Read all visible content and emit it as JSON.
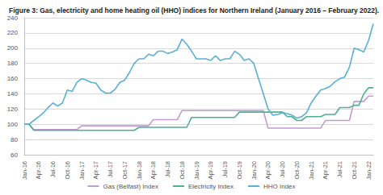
{
  "chart_data": {
    "type": "line",
    "title": "Figure 3: Gas, electricity and home heating oil (HHO) indices for Northern Ireland (January 2016 – February 2022).",
    "categories": [
      "Jan-16",
      null,
      null,
      "Apr-16",
      null,
      null,
      "Jul-16",
      null,
      null,
      "Oct-16",
      null,
      null,
      "Jan-17",
      null,
      null,
      "Apr-17",
      null,
      null,
      "Jul-17",
      null,
      null,
      "Oct-17",
      null,
      null,
      "Jan-18",
      null,
      null,
      "Apr-18",
      null,
      null,
      "Jul-18",
      null,
      null,
      "Oct-18",
      null,
      null,
      "Jan-19",
      null,
      null,
      "Apr-19",
      null,
      null,
      "Jul-19",
      null,
      null,
      "Oct-19",
      null,
      null,
      "Jan-20",
      null,
      null,
      "Apr-20",
      null,
      null,
      "Jul-20",
      null,
      null,
      "Oct-20",
      null,
      null,
      "Jan-21",
      null,
      null,
      "Apr-21",
      null,
      null,
      "Jul-21",
      null,
      null,
      "Oct-21",
      null,
      null,
      "Jan-22",
      null
    ],
    "series": [
      {
        "name": "Gas (Belfast) Index",
        "color": "#c39bd3",
        "values": [
          100,
          100,
          93,
          93,
          93,
          93,
          93,
          93,
          93,
          93,
          93,
          93,
          98,
          98,
          98,
          98,
          98,
          98,
          98,
          98,
          98,
          98,
          98,
          98,
          98,
          98,
          98,
          106,
          106,
          106,
          106,
          106,
          106,
          118,
          118,
          118,
          118,
          118,
          118,
          118,
          118,
          118,
          118,
          118,
          118,
          118,
          118,
          118,
          118,
          118,
          118,
          95,
          95,
          95,
          95,
          95,
          95,
          95,
          95,
          95,
          95,
          95,
          95,
          105,
          105,
          105,
          105,
          105,
          105,
          130,
          130,
          130,
          137,
          137
        ]
      },
      {
        "name": "Electricity Index",
        "color": "#4fae94",
        "values": [
          100,
          100,
          92,
          92,
          92,
          92,
          92,
          92,
          92,
          92,
          92,
          92,
          92,
          92,
          92,
          92,
          92,
          92,
          92,
          92,
          92,
          92,
          92,
          92,
          96,
          96,
          96,
          96,
          96,
          96,
          96,
          96,
          96,
          96,
          96,
          109,
          109,
          109,
          109,
          109,
          109,
          109,
          109,
          109,
          109,
          116,
          116,
          116,
          116,
          116,
          116,
          116,
          116,
          116,
          116,
          110,
          110,
          105,
          105,
          110,
          110,
          110,
          110,
          113,
          113,
          113,
          122,
          122,
          122,
          125,
          125,
          140,
          148,
          148
        ]
      },
      {
        "name": "HHO Index",
        "color": "#5ab0d4",
        "values": [
          100,
          100,
          105,
          110,
          115,
          122,
          128,
          124,
          128,
          145,
          143,
          155,
          160,
          158,
          155,
          154,
          145,
          141,
          141,
          146,
          155,
          158,
          168,
          180,
          186,
          186,
          192,
          190,
          196,
          196,
          193,
          195,
          198,
          212,
          205,
          196,
          186,
          186,
          186,
          184,
          190,
          184,
          186,
          186,
          196,
          192,
          184,
          186,
          180,
          160,
          140,
          120,
          112,
          113,
          115,
          114,
          112,
          108,
          110,
          115,
          128,
          137,
          145,
          147,
          150,
          156,
          160,
          162,
          175,
          200,
          198,
          195,
          210,
          232
        ]
      }
    ],
    "ylim": [
      60,
      240
    ],
    "yticks": [
      60,
      80,
      100,
      120,
      140,
      160,
      180,
      200,
      220,
      240
    ],
    "grid": true,
    "legend": "bottom"
  }
}
